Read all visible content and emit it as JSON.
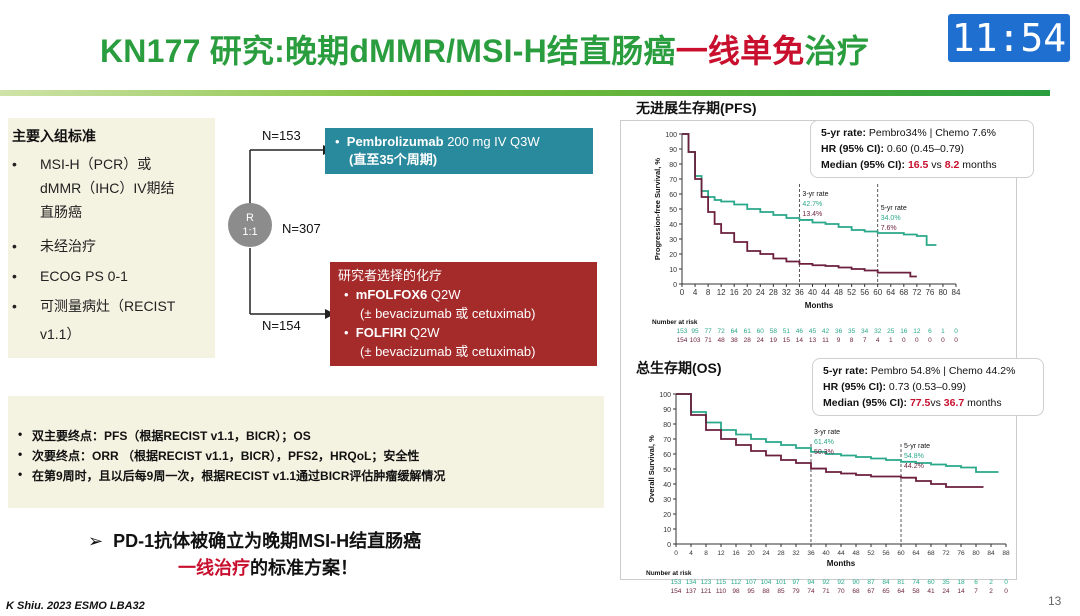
{
  "title": {
    "part1": "KN177 研究:晚期dMMR/MSI-H结直肠癌",
    "part2": "一线单免",
    "part3": "治疗"
  },
  "clock": "11:54",
  "inclusion": {
    "heading": "主要入组标准",
    "items": [
      "MSI-H（PCR）或",
      "dMMR（IHC）IV期结",
      "直肠癌",
      "未经治疗",
      "ECOG PS 0-1",
      "可测量病灶（RECIST",
      "v1.1）"
    ]
  },
  "design": {
    "n_total": "N=307",
    "n_arm1": "N=153",
    "n_arm2": "N=154",
    "rand_top": "R",
    "rand_bottom": "1:1",
    "arm1_line1_bold": "Pembrolizumab",
    "arm1_line1_rest": " 200 mg IV Q3W",
    "arm1_line2": "(直至35个周期)",
    "arm2_title": "研究者选择的化疗",
    "arm2_item1_bold": "mFOLFOX6",
    "arm2_item1_rest": " Q2W",
    "arm2_item1_sub": "(± bevacizumab 或 cetuximab)",
    "arm2_item2_bold": "FOLFIRI",
    "arm2_item2_rest": " Q2W",
    "arm2_item2_sub": "(± bevacizumab 或 cetuximab)"
  },
  "endpoints": [
    "双主要终点：PFS（根据RECIST v1.1，BICR）；OS",
    "次要终点：ORR （根据RECIST v1.1，BICR），PFS2，HRQoL；安全性",
    "在第9周时，且以后每9周一次，根据RECIST v1.1通过BICR评估肿瘤缓解情况"
  ],
  "conclusion": {
    "line1": "PD-1抗体被确立为晚期MSI-H结直肠癌",
    "line2_red": "一线治疗",
    "line2_rest": "的标准方案！"
  },
  "footer": "K Shiu. 2023 ESMO LBA32",
  "page_number": "13",
  "colors": {
    "green_title": "#2a9d3e",
    "red": "#c8102e",
    "pembro": "#2aa88a",
    "chemo": "#6b1f3d",
    "arm1_box": "#2a8a9d",
    "arm2_box": "#a52a2a"
  },
  "pfs": {
    "heading": "无进展生存期(PFS)",
    "stat1_label": "5-yr rate:",
    "stat1_value": " Pembro34%  |  Chemo 7.6%",
    "stat2_label": "HR (95% CI):",
    "stat2_value": " 0.60 (0.45–0.79)",
    "stat3_label": "Median (95% CI):",
    "stat3_v1": "16.5",
    "stat3_mid": " vs ",
    "stat3_v2": "8.2",
    "stat3_end": " months",
    "ann_3yr": "3-yr rate",
    "ann_3yr_p": "42.7%",
    "ann_3yr_c": "13.4%",
    "ann_5yr": "5-yr rate",
    "ann_5yr_p": "34.0%",
    "ann_5yr_c": "7.6%",
    "ylabel": "Progression-free Survival, %",
    "xlabel": "Months",
    "risk_label": "Number at risk",
    "risk_p": [
      "153",
      "95",
      "77",
      "72",
      "64",
      "61",
      "60",
      "58",
      "51",
      "46",
      "45",
      "42",
      "36",
      "35",
      "34",
      "32",
      "25",
      "16",
      "12",
      "6",
      "1",
      "0"
    ],
    "risk_c": [
      "154",
      "103",
      "71",
      "48",
      "38",
      "28",
      "24",
      "19",
      "15",
      "14",
      "13",
      "11",
      "9",
      "8",
      "7",
      "4",
      "1",
      "0",
      "0",
      "0",
      "0",
      "0"
    ]
  },
  "os": {
    "heading": "总生存期(OS)",
    "stat1_label": "5-yr rate:",
    "stat1_value": " Pembro 54.8%  |  Chemo 44.2%",
    "stat2_label": "HR (95% CI):",
    "stat2_value": " 0.73 (0.53–0.99)",
    "stat3_label": "Median (95% CI):",
    "stat3_v1": "77.5",
    "stat3_mid": "vs ",
    "stat3_v2": "36.7",
    "stat3_end": " months",
    "ann_3yr": "3-yr rate",
    "ann_3yr_p": "61.4%",
    "ann_3yr_c": "50.3%",
    "ann_5yr": "5-yr rate",
    "ann_5yr_p": "54.8%",
    "ann_5yr_c": "44.2%",
    "ylabel": "Overall Survival, %",
    "xlabel": "Months",
    "risk_label": "Number at risk",
    "risk_p": [
      "153",
      "134",
      "123",
      "115",
      "112",
      "107",
      "104",
      "101",
      "97",
      "94",
      "92",
      "92",
      "90",
      "87",
      "84",
      "81",
      "74",
      "60",
      "35",
      "18",
      "6",
      "2",
      "0"
    ],
    "risk_c": [
      "154",
      "137",
      "121",
      "110",
      "98",
      "95",
      "88",
      "85",
      "79",
      "74",
      "71",
      "70",
      "68",
      "67",
      "65",
      "64",
      "58",
      "41",
      "24",
      "14",
      "7",
      "2",
      "0"
    ]
  },
  "chart_data": [
    {
      "type": "line",
      "title": "无进展生存期(PFS)",
      "xlabel": "Months",
      "ylabel": "Progression-free Survival, %",
      "xlim": [
        0,
        84
      ],
      "ylim": [
        0,
        100
      ],
      "x_ticks": [
        0,
        4,
        8,
        12,
        16,
        20,
        24,
        28,
        32,
        36,
        40,
        44,
        48,
        52,
        56,
        60,
        64,
        68,
        72,
        76,
        80,
        84
      ],
      "y_ticks": [
        0,
        10,
        20,
        30,
        40,
        50,
        60,
        70,
        80,
        90,
        100
      ],
      "series": [
        {
          "values": [
            [
              0,
              100
            ],
            [
              2,
              88
            ],
            [
              4,
              72
            ],
            [
              6,
              62
            ],
            [
              8,
              58
            ],
            [
              10,
              56
            ],
            [
              12,
              55
            ],
            [
              16,
              53
            ],
            [
              20,
              50
            ],
            [
              24,
              48
            ],
            [
              28,
              46
            ],
            [
              32,
              44
            ],
            [
              36,
              42.7
            ],
            [
              40,
              41
            ],
            [
              44,
              40
            ],
            [
              48,
              38
            ],
            [
              52,
              36
            ],
            [
              56,
              35
            ],
            [
              60,
              34
            ],
            [
              64,
              34
            ],
            [
              68,
              33
            ],
            [
              72,
              32
            ],
            [
              74,
              32
            ],
            [
              75,
              26
            ],
            [
              78,
              26
            ]
          ]
        },
        {
          "values": [
            [
              0,
              100
            ],
            [
              2,
              88
            ],
            [
              4,
              70
            ],
            [
              6,
              58
            ],
            [
              8,
              48
            ],
            [
              10,
              40
            ],
            [
              12,
              34
            ],
            [
              16,
              28
            ],
            [
              20,
              22
            ],
            [
              24,
              20
            ],
            [
              28,
              17
            ],
            [
              32,
              15
            ],
            [
              36,
              13.4
            ],
            [
              40,
              12.5
            ],
            [
              44,
              12
            ],
            [
              48,
              11
            ],
            [
              52,
              10
            ],
            [
              56,
              9
            ],
            [
              60,
              7.6
            ],
            [
              64,
              7.6
            ],
            [
              68,
              7.6
            ],
            [
              70,
              5
            ],
            [
              72,
              5
            ]
          ]
        }
      ],
      "grid": false
    },
    {
      "type": "line",
      "title": "总生存期(OS)",
      "xlabel": "Months",
      "ylabel": "Overall Survival, %",
      "xlim": [
        0,
        88
      ],
      "ylim": [
        0,
        100
      ],
      "x_ticks": [
        0,
        4,
        8,
        12,
        16,
        20,
        24,
        28,
        32,
        36,
        40,
        44,
        48,
        52,
        56,
        60,
        64,
        68,
        72,
        76,
        80,
        84,
        88
      ],
      "y_ticks": [
        0,
        10,
        20,
        30,
        40,
        50,
        60,
        70,
        80,
        90,
        100
      ],
      "series": [
        {
          "values": [
            [
              0,
              100
            ],
            [
              4,
              88
            ],
            [
              8,
              81
            ],
            [
              12,
              76
            ],
            [
              16,
              73
            ],
            [
              20,
              70
            ],
            [
              24,
              68
            ],
            [
              28,
              66
            ],
            [
              32,
              64
            ],
            [
              36,
              61.4
            ],
            [
              40,
              60
            ],
            [
              44,
              59
            ],
            [
              48,
              58
            ],
            [
              52,
              57
            ],
            [
              56,
              56
            ],
            [
              60,
              54.8
            ],
            [
              64,
              54
            ],
            [
              68,
              53
            ],
            [
              72,
              52
            ],
            [
              76,
              51
            ],
            [
              80,
              48
            ],
            [
              84,
              48
            ],
            [
              86,
              48
            ]
          ]
        },
        {
          "values": [
            [
              0,
              100
            ],
            [
              4,
              86
            ],
            [
              8,
              76
            ],
            [
              12,
              70
            ],
            [
              16,
              66
            ],
            [
              20,
              62
            ],
            [
              24,
              59
            ],
            [
              28,
              56
            ],
            [
              32,
              54
            ],
            [
              36,
              50.3
            ],
            [
              40,
              48
            ],
            [
              44,
              47
            ],
            [
              48,
              46
            ],
            [
              52,
              45
            ],
            [
              56,
              45
            ],
            [
              60,
              44.2
            ],
            [
              64,
              42
            ],
            [
              68,
              40
            ],
            [
              72,
              38
            ],
            [
              76,
              38
            ],
            [
              80,
              38
            ],
            [
              82,
              38
            ]
          ]
        }
      ],
      "grid": false
    }
  ]
}
